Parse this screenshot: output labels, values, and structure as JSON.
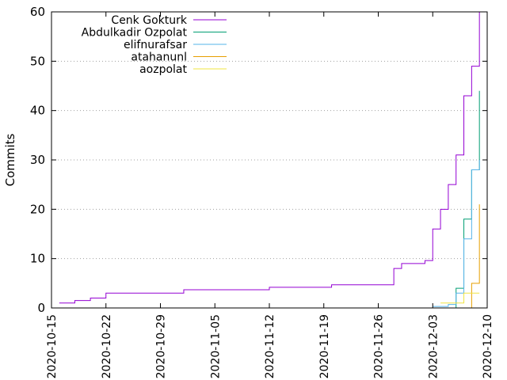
{
  "chart_data": {
    "type": "line",
    "xlabel": "",
    "ylabel": "Commits",
    "x_axis": {
      "type": "date",
      "range": [
        "2020-10-15",
        "2020-12-10"
      ],
      "tick_labels": [
        "2020-10-15",
        "2020-10-22",
        "2020-10-29",
        "2020-11-05",
        "2020-11-12",
        "2020-11-19",
        "2020-11-26",
        "2020-12-03",
        "2020-12-10"
      ]
    },
    "y_axis": {
      "range": [
        0,
        60
      ],
      "tick_labels": [
        "0",
        "10",
        "20",
        "30",
        "40",
        "50",
        "60"
      ]
    },
    "grid": "horizontal dotted",
    "legend_position": "top-left",
    "series": [
      {
        "name": "Cenk Gokturk",
        "color": "#9400d3",
        "step": true,
        "points": [
          [
            "2020-10-16",
            1
          ],
          [
            "2020-10-18",
            1.5
          ],
          [
            "2020-10-20",
            2
          ],
          [
            "2020-10-22",
            2.4
          ],
          [
            "2020-10-22",
            3
          ],
          [
            "2020-11-01",
            3.7
          ],
          [
            "2020-11-12",
            4.2
          ],
          [
            "2020-11-20",
            4.7
          ],
          [
            "2020-11-28",
            5
          ],
          [
            "2020-11-28",
            8
          ],
          [
            "2020-11-29",
            9
          ],
          [
            "2020-12-02",
            9.6
          ],
          [
            "2020-12-03",
            10
          ],
          [
            "2020-12-03",
            16
          ],
          [
            "2020-12-04",
            16
          ],
          [
            "2020-12-04",
            20
          ],
          [
            "2020-12-05",
            22
          ],
          [
            "2020-12-05",
            25
          ],
          [
            "2020-12-06",
            28
          ],
          [
            "2020-12-06",
            31
          ],
          [
            "2020-12-07",
            34
          ],
          [
            "2020-12-07",
            43
          ],
          [
            "2020-12-08",
            45
          ],
          [
            "2020-12-08",
            49
          ],
          [
            "2020-12-09",
            60
          ]
        ]
      },
      {
        "name": "Abdulkadir Ozpolat",
        "color": "#009e73",
        "step": true,
        "points": [
          [
            "2020-12-06",
            0
          ],
          [
            "2020-12-06",
            1
          ],
          [
            "2020-12-06",
            4
          ],
          [
            "2020-12-07",
            6
          ],
          [
            "2020-12-07",
            12
          ],
          [
            "2020-12-07",
            18
          ],
          [
            "2020-12-08",
            23
          ],
          [
            "2020-12-08",
            28
          ],
          [
            "2020-12-09",
            34
          ],
          [
            "2020-12-09",
            36
          ],
          [
            "2020-12-09",
            44
          ]
        ]
      },
      {
        "name": "elifnurafsar",
        "color": "#56b4e9",
        "step": true,
        "points": [
          [
            "2020-12-03",
            0.3
          ],
          [
            "2020-12-05",
            0.7
          ],
          [
            "2020-12-06",
            1
          ],
          [
            "2020-12-06",
            3
          ],
          [
            "2020-12-07",
            6
          ],
          [
            "2020-12-07",
            10
          ],
          [
            "2020-12-07",
            14
          ],
          [
            "2020-12-08",
            20
          ],
          [
            "2020-12-08",
            25
          ],
          [
            "2020-12-08",
            28
          ],
          [
            "2020-12-09",
            29
          ],
          [
            "2020-12-09",
            30
          ]
        ]
      },
      {
        "name": "atahanunl",
        "color": "#e69f00",
        "step": true,
        "points": [
          [
            "2020-12-07",
            0
          ],
          [
            "2020-12-08",
            1
          ],
          [
            "2020-12-08",
            3
          ],
          [
            "2020-12-08",
            5
          ],
          [
            "2020-12-09",
            6
          ],
          [
            "2020-12-09",
            10
          ],
          [
            "2020-12-09",
            20
          ],
          [
            "2020-12-09",
            21
          ]
        ]
      },
      {
        "name": "aozpolat",
        "color": "#f0e442",
        "step": true,
        "points": [
          [
            "2020-12-04",
            1
          ],
          [
            "2020-12-07",
            1
          ],
          [
            "2020-12-07",
            3
          ],
          [
            "2020-12-09",
            3
          ]
        ]
      }
    ]
  }
}
